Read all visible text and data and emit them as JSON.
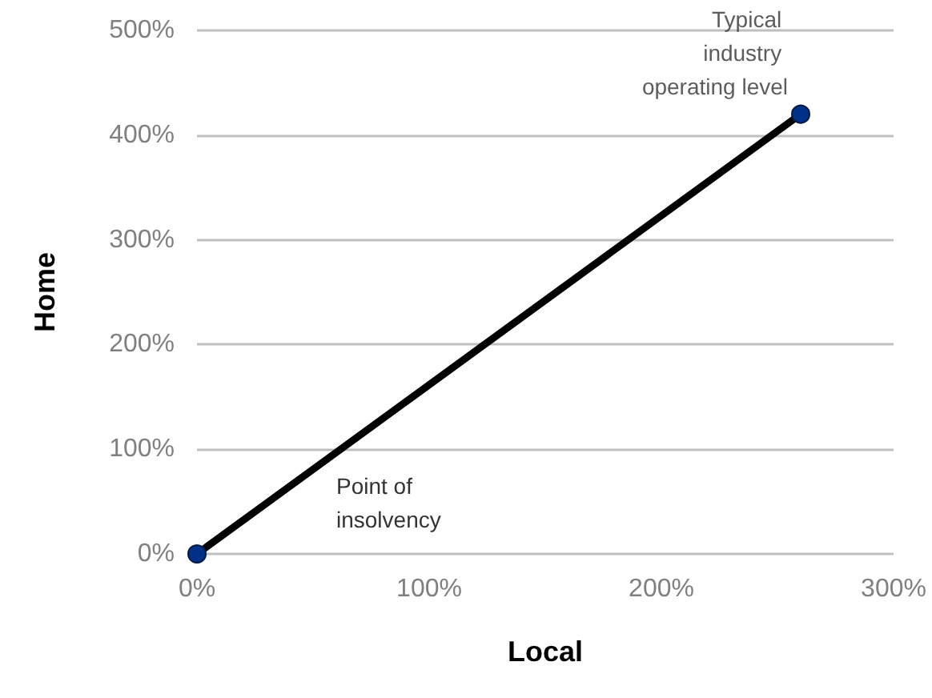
{
  "chart_data": {
    "type": "line",
    "xlabel": "Local",
    "ylabel": "Home",
    "x": [
      0,
      260
    ],
    "series": [
      {
        "color": "#000000",
        "values": [
          0,
          420
        ]
      }
    ],
    "xlim": [
      0,
      300
    ],
    "xticks": [
      {
        "value": 0,
        "label": "0%"
      },
      {
        "value": 100,
        "label": "100%"
      },
      {
        "value": 200,
        "label": "200%"
      },
      {
        "value": 300,
        "label": "300%"
      }
    ],
    "ylim": [
      0,
      500
    ],
    "yticks": [
      {
        "value": 0,
        "label": "0%"
      },
      {
        "value": 100,
        "label": "100%"
      },
      {
        "value": 200,
        "label": "200%"
      },
      {
        "value": 300,
        "label": "300%"
      },
      {
        "value": 400,
        "label": "400%"
      },
      {
        "value": 500,
        "label": "500%"
      }
    ],
    "grid": "y",
    "marker": "circle",
    "line_style": "solid",
    "annotations": [
      {
        "text": "Typical industry operating level",
        "x": 260,
        "y": 420
      },
      "Point of insolvency"
    ]
  }
}
